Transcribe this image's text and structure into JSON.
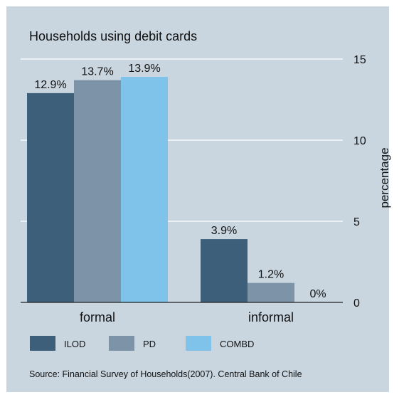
{
  "chart_data": {
    "type": "bar",
    "title": "Households using debit cards",
    "ylabel": "percentage",
    "xlabel": "",
    "categories": [
      "formal",
      "informal"
    ],
    "series": [
      {
        "name": "ILOD",
        "values": [
          12.9,
          3.9
        ],
        "labels": [
          "12.9%",
          "3.9%"
        ],
        "color": "#3e5f7a"
      },
      {
        "name": "PD",
        "values": [
          13.7,
          1.2
        ],
        "labels": [
          "13.7%",
          "1.2%"
        ],
        "color": "#7d93a8"
      },
      {
        "name": "COMBD",
        "values": [
          13.9,
          0
        ],
        "labels": [
          "13.9%",
          "0%"
        ],
        "color": "#7fc2ea"
      }
    ],
    "ylim": [
      0,
      15
    ],
    "yticks": [
      "0",
      "5",
      "10",
      "15"
    ],
    "y_axis_side": "right",
    "grid": "horizontal",
    "legend_position": "bottom",
    "background_color": "#c9d6e0",
    "grid_color": "#ffffff"
  },
  "source_note": "Source: Financial Survey of Households(2007). Central Bank of Chile"
}
